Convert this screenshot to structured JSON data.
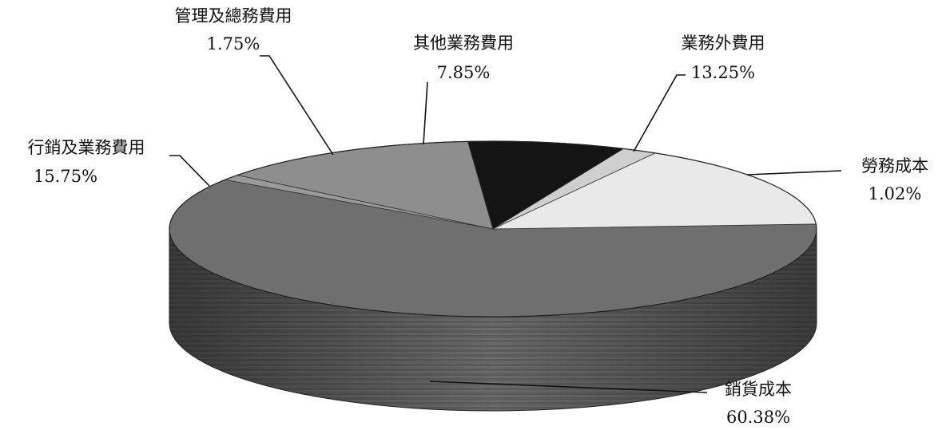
{
  "chart_data": {
    "type": "pie",
    "three_d": true,
    "legend": "none",
    "series": [
      {
        "name": "銷貨成本",
        "value": 60.38,
        "label": "60.38%",
        "color": "#6f6f6f"
      },
      {
        "name": "勞務成本",
        "value": 1.02,
        "label": "1.02%",
        "color": "#9a9a9a"
      },
      {
        "name": "業務外費用",
        "value": 13.25,
        "label": "13.25%",
        "color": "#8e8e8e"
      },
      {
        "name": "其他業務費用",
        "value": 7.85,
        "label": "7.85%",
        "color": "#141414"
      },
      {
        "name": "管理及總務費用",
        "value": 1.75,
        "label": "1.75%",
        "color": "#cfcfcf"
      },
      {
        "name": "行銷及業務費用",
        "value": 15.75,
        "label": "15.75%",
        "color": "#e9e9e9"
      }
    ]
  }
}
